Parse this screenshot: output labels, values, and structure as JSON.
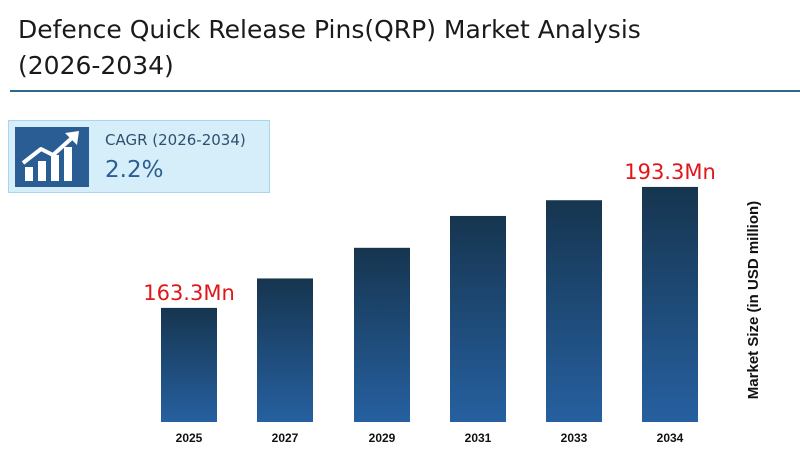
{
  "header": {
    "title_line1": "Defence Quick Release Pins(QRP) Market Analysis",
    "title_line2": "(2026-2034)"
  },
  "cagr": {
    "label": "CAGR (2026-2034)",
    "value": "2.2%",
    "icon": "growth-chart-icon"
  },
  "colors": {
    "bar_top": "#16354f",
    "bar_bottom": "#2660a0",
    "label_red": "#e0161a",
    "rule": "#2a6a8a"
  },
  "chart_data": {
    "type": "bar",
    "categories": [
      "2025",
      "2027",
      "2029",
      "2031",
      "2033",
      "2034"
    ],
    "values": [
      163.3,
      170.6,
      178.2,
      186.1,
      190.0,
      193.3
    ],
    "data_labels": [
      "163.3Mn",
      "",
      "",
      "",
      "",
      "193.3Mn"
    ],
    "ylabel": "Market Size (in USD million)",
    "ylim": [
      135,
      197
    ],
    "grid": false,
    "legend": "none"
  }
}
